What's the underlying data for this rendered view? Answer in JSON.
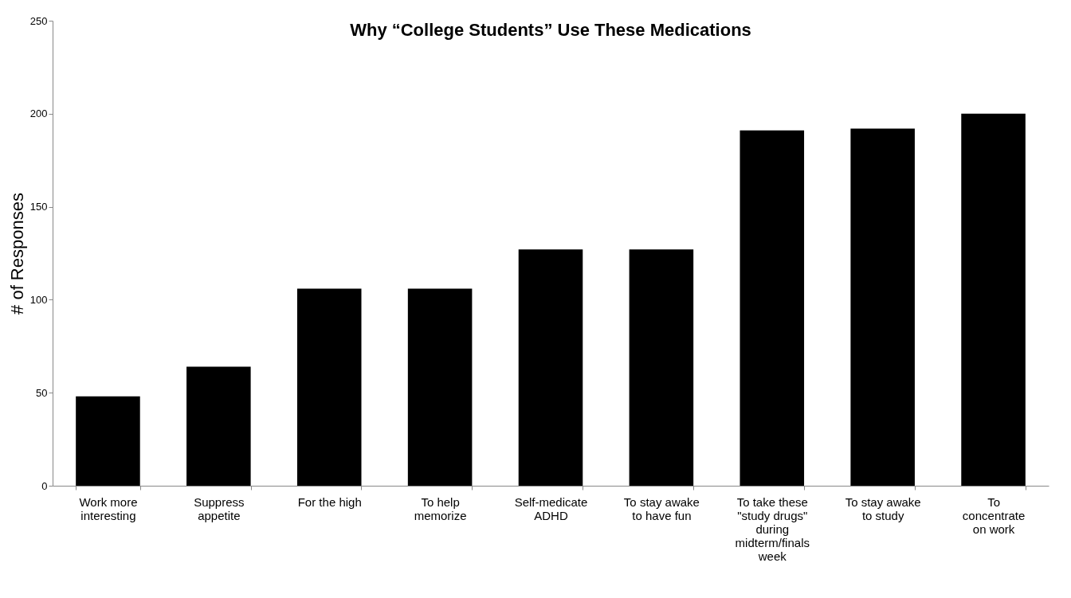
{
  "chart_data": {
    "type": "bar",
    "title": "Why “College Students” Use These Medications",
    "ylabel": "# of Responses",
    "categories": [
      "Work more interesting",
      "Suppress appetite",
      "For the high",
      "To help memorize",
      "Self-medicate ADHD",
      "To stay awake to have fun",
      "To take these \"study drugs\" during midterm/finals week",
      "To stay awake to study",
      "To concentrate on work"
    ],
    "values": [
      48,
      64,
      106,
      106,
      127,
      127,
      191,
      192,
      200
    ],
    "color": "#000000",
    "ylim": [
      0,
      250
    ],
    "yticks": [
      0,
      50,
      100,
      150,
      200,
      250
    ],
    "grid": false
  }
}
